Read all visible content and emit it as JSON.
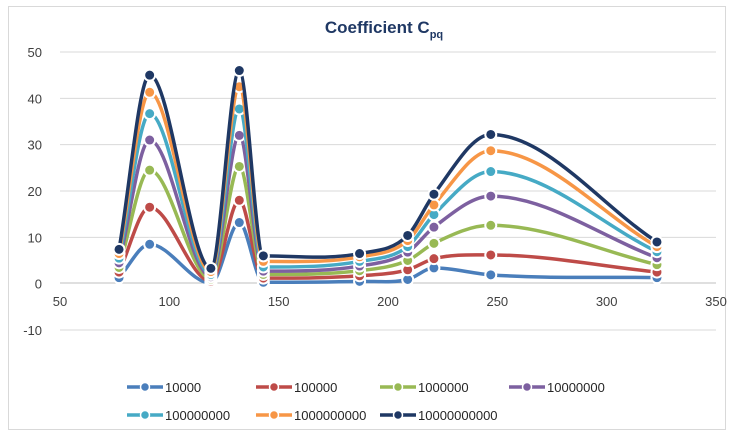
{
  "chart_data": {
    "type": "line",
    "title": "Coefficient C",
    "title_subscript": "pq",
    "xlabel": "",
    "ylabel": "",
    "xlim": [
      50,
      350
    ],
    "ylim": [
      -10,
      50
    ],
    "x_ticks": [
      50,
      100,
      150,
      200,
      250,
      300,
      350
    ],
    "x_tick_labels": [
      "50",
      "100",
      "150",
      "200",
      "250",
      "300",
      "350"
    ],
    "y_ticks": [
      -10,
      0,
      10,
      20,
      30,
      40,
      50
    ],
    "y_tick_labels": [
      "-10",
      "0",
      "10",
      "20",
      "30",
      "40",
      "50"
    ],
    "grid": true,
    "smooth": true,
    "legend_position": "bottom",
    "x": [
      77,
      91,
      119,
      132,
      143,
      187,
      209,
      221,
      247,
      323
    ],
    "series": [
      {
        "name": "10000",
        "color": "#4a7ebb",
        "values": [
          1.3,
          8.5,
          0.1,
          13.2,
          0.3,
          0.5,
          0.9,
          3.4,
          1.9,
          1.3
        ]
      },
      {
        "name": "100000",
        "color": "#be4b48",
        "values": [
          2.5,
          16.5,
          0.5,
          18.0,
          1.2,
          1.7,
          3.0,
          5.4,
          6.2,
          2.5
        ]
      },
      {
        "name": "1000000",
        "color": "#98b954",
        "values": [
          3.5,
          24.5,
          1.0,
          25.3,
          2.0,
          2.8,
          5.0,
          8.7,
          12.6,
          4.1
        ]
      },
      {
        "name": "10000000",
        "color": "#7d60a0",
        "values": [
          4.5,
          31.0,
          1.5,
          32.0,
          2.7,
          3.8,
          6.8,
          12.2,
          18.9,
          5.6
        ]
      },
      {
        "name": "100000000",
        "color": "#46aac5",
        "values": [
          5.5,
          36.7,
          2.0,
          37.7,
          3.6,
          4.8,
          8.0,
          14.9,
          24.2,
          6.9
        ]
      },
      {
        "name": "1000000000",
        "color": "#f79646",
        "values": [
          6.5,
          41.3,
          2.6,
          42.5,
          4.8,
          5.8,
          9.3,
          17.0,
          28.7,
          8.0
        ]
      },
      {
        "name": "10000000000",
        "color": "#1f3864",
        "values": [
          7.4,
          45.0,
          3.3,
          46.0,
          6.0,
          6.5,
          10.4,
          19.3,
          32.2,
          9.0
        ]
      }
    ]
  }
}
